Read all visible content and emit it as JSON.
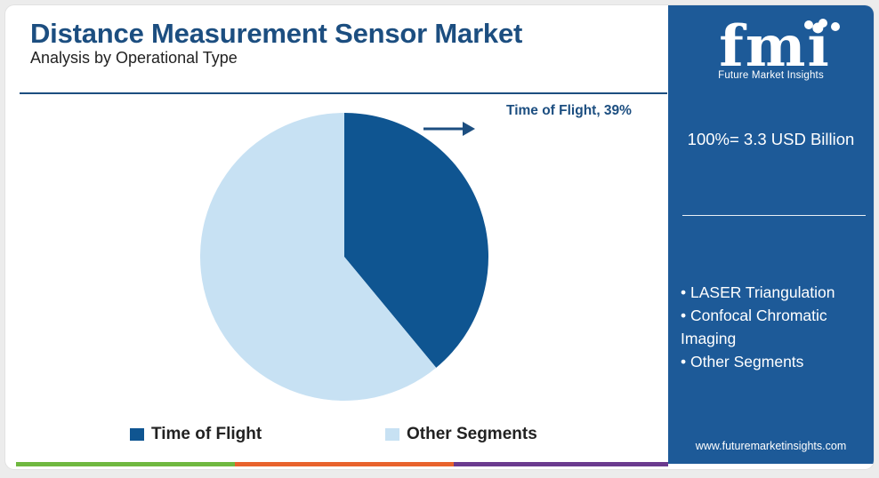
{
  "header": {
    "title": "Distance Measurement Sensor Market",
    "subtitle": "Analysis by Operational Type"
  },
  "sidebar": {
    "logo_text": "fmi",
    "logo_subtitle": "Future Market Insights",
    "total": "100%= 3.3 USD Billion",
    "segments": [
      "• LASER Triangulation",
      "• Confocal Chromatic Imaging",
      "• Other Segments"
    ],
    "website": "www.futuremarketinsights.com"
  },
  "callout": "Time of Flight, 39%",
  "colors": {
    "primary": "#1c4e80",
    "time_of_flight": "#0f5591",
    "other_segments": "#c7e1f3",
    "sidebar_bg": "#1d5a98",
    "bar_green": "#6fb83f",
    "bar_orange": "#e8622c",
    "bar_purple": "#6a3a8e"
  },
  "chart_data": {
    "type": "pie",
    "title": "Distance Measurement Sensor Market",
    "subtitle": "Analysis by Operational Type",
    "categories": [
      "Time of Flight",
      "Other Segments"
    ],
    "values": [
      39,
      61
    ],
    "unit": "%",
    "legend_position": "bottom"
  }
}
